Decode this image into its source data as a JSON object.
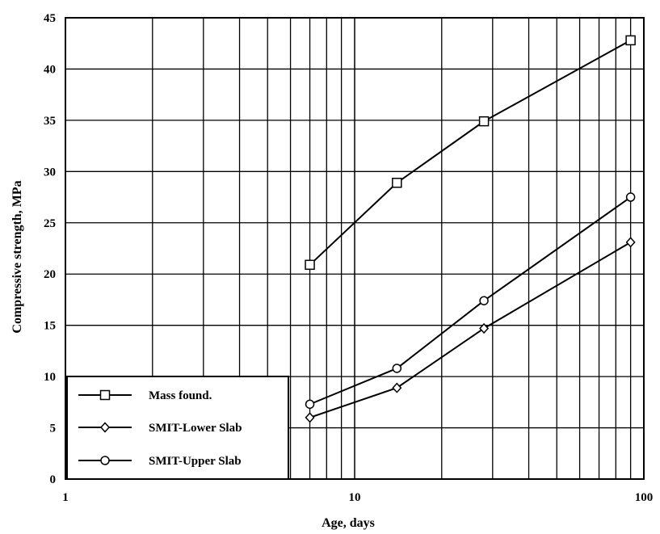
{
  "chart_data": {
    "type": "line",
    "title": "",
    "xlabel": "Age, days",
    "ylabel": "Compressive strength, MPa",
    "xscale": "log",
    "xlim": [
      1,
      100
    ],
    "ylim": [
      0,
      45
    ],
    "xticks": [
      1,
      10,
      100
    ],
    "xtick_labels": [
      "1",
      "10",
      "100"
    ],
    "yticks": [
      0,
      5,
      10,
      15,
      20,
      25,
      30,
      35,
      40,
      45
    ],
    "ytick_labels": [
      "0",
      "5",
      "10",
      "15",
      "20",
      "25",
      "30",
      "35",
      "40",
      "45"
    ],
    "grid": true,
    "legend_position": "bottom-left",
    "series": [
      {
        "name": "Mass found.",
        "marker": "square",
        "x": [
          7,
          14,
          28,
          90
        ],
        "y": [
          20.9,
          28.9,
          34.9,
          42.8
        ]
      },
      {
        "name": "SMIT-Lower Slab",
        "marker": "diamond",
        "x": [
          7,
          14,
          28,
          90
        ],
        "y": [
          6.0,
          8.9,
          14.7,
          23.1
        ]
      },
      {
        "name": "SMIT-Upper Slab",
        "marker": "circle",
        "x": [
          7,
          14,
          28,
          90
        ],
        "y": [
          7.3,
          10.8,
          17.4,
          27.5
        ]
      }
    ]
  }
}
